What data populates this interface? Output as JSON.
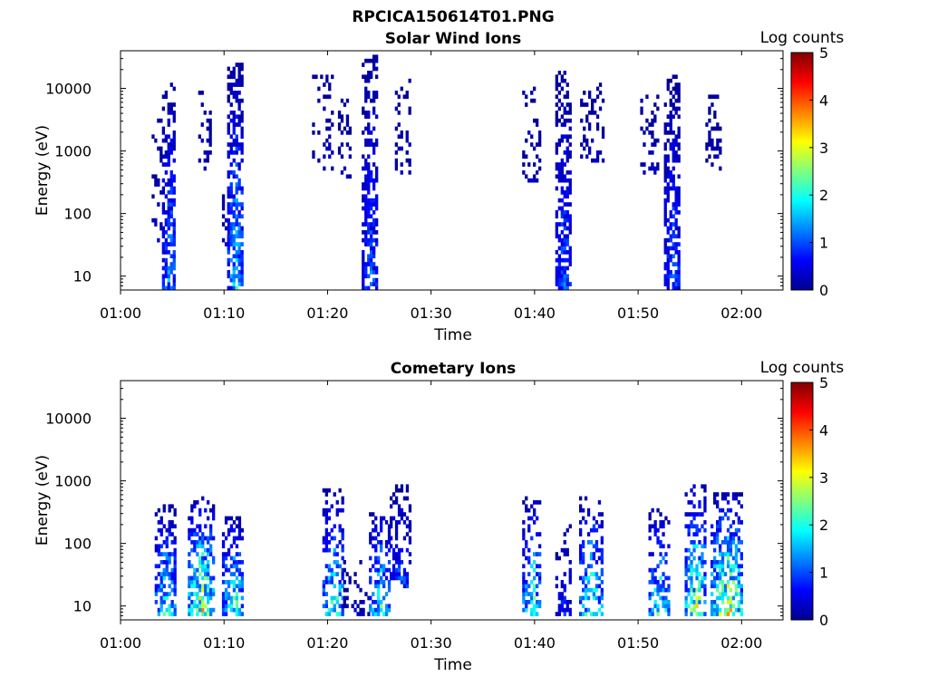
{
  "figure_title": "RPCICA150614T01.PNG",
  "chart_data": [
    {
      "type": "heatmap",
      "title": "Solar Wind Ions",
      "xlabel": "Time",
      "ylabel": "Energy (eV)",
      "y_scale": "log",
      "ylim": [
        6,
        40000
      ],
      "xlim_minutes": [
        60,
        124
      ],
      "x_ticks": [
        {
          "minute": 60,
          "label": "01:00"
        },
        {
          "minute": 70,
          "label": "01:10"
        },
        {
          "minute": 80,
          "label": "01:20"
        },
        {
          "minute": 90,
          "label": "01:30"
        },
        {
          "minute": 100,
          "label": "01:40"
        },
        {
          "minute": 110,
          "label": "01:50"
        },
        {
          "minute": 120,
          "label": "02:00"
        }
      ],
      "y_ticks": [
        {
          "value": 10,
          "label": "10"
        },
        {
          "value": 100,
          "label": "100"
        },
        {
          "value": 1000,
          "label": "1000"
        },
        {
          "value": 10000,
          "label": "10000"
        }
      ],
      "colorbar": {
        "label": "Log counts",
        "min": 0,
        "max": 5,
        "ticks": [
          "0",
          "1",
          "2",
          "3",
          "4",
          "5"
        ],
        "colormap": "jet"
      },
      "bursts": [
        {
          "t0": 63.0,
          "t1": 63.8,
          "elow": 30,
          "ehigh": 5000,
          "peak": 0.4,
          "density": 0.25
        },
        {
          "t0": 64.0,
          "t1": 65.3,
          "elow": 6,
          "ehigh": 12000,
          "peak": 1.3,
          "density": 0.7
        },
        {
          "t0": 67.5,
          "t1": 68.8,
          "elow": 500,
          "ehigh": 10000,
          "peak": 0.3,
          "density": 0.35
        },
        {
          "t0": 69.8,
          "t1": 70.4,
          "elow": 30,
          "ehigh": 200,
          "peak": 0.4,
          "density": 0.3
        },
        {
          "t0": 70.3,
          "t1": 71.8,
          "elow": 6,
          "ehigh": 25000,
          "peak": 1.6,
          "density": 0.75
        },
        {
          "t0": 78.5,
          "t1": 80.5,
          "elow": 500,
          "ehigh": 15000,
          "peak": 0.3,
          "density": 0.3
        },
        {
          "t0": 81.0,
          "t1": 82.3,
          "elow": 300,
          "ehigh": 6000,
          "peak": 0.3,
          "density": 0.3
        },
        {
          "t0": 83.3,
          "t1": 84.8,
          "elow": 6,
          "ehigh": 30000,
          "peak": 1.0,
          "density": 0.7
        },
        {
          "t0": 86.5,
          "t1": 88.0,
          "elow": 400,
          "ehigh": 15000,
          "peak": 0.3,
          "density": 0.35
        },
        {
          "t0": 98.8,
          "t1": 100.5,
          "elow": 300,
          "ehigh": 10000,
          "peak": 0.3,
          "density": 0.35
        },
        {
          "t0": 102.0,
          "t1": 103.5,
          "elow": 6,
          "ehigh": 18000,
          "peak": 1.0,
          "density": 0.7
        },
        {
          "t0": 104.4,
          "t1": 106.5,
          "elow": 600,
          "ehigh": 12000,
          "peak": 0.3,
          "density": 0.35
        },
        {
          "t0": 110.2,
          "t1": 112.0,
          "elow": 400,
          "ehigh": 10000,
          "peak": 0.3,
          "density": 0.3
        },
        {
          "t0": 112.5,
          "t1": 114.0,
          "elow": 6,
          "ehigh": 15000,
          "peak": 1.0,
          "density": 0.7
        },
        {
          "t0": 116.5,
          "t1": 118.0,
          "elow": 500,
          "ehigh": 8000,
          "peak": 0.3,
          "density": 0.35
        }
      ]
    },
    {
      "type": "heatmap",
      "title": "Cometary Ions",
      "xlabel": "Time",
      "ylabel": "Energy (eV)",
      "y_scale": "log",
      "ylim": [
        6,
        40000
      ],
      "xlim_minutes": [
        60,
        124
      ],
      "x_ticks": [
        {
          "minute": 60,
          "label": "01:00"
        },
        {
          "minute": 70,
          "label": "01:10"
        },
        {
          "minute": 80,
          "label": "01:20"
        },
        {
          "minute": 90,
          "label": "01:30"
        },
        {
          "minute": 100,
          "label": "01:40"
        },
        {
          "minute": 110,
          "label": "01:50"
        },
        {
          "minute": 120,
          "label": "02:00"
        }
      ],
      "y_ticks": [
        {
          "value": 10,
          "label": "10"
        },
        {
          "value": 100,
          "label": "100"
        },
        {
          "value": 1000,
          "label": "1000"
        },
        {
          "value": 10000,
          "label": "10000"
        }
      ],
      "colorbar": {
        "label": "Log counts",
        "min": 0,
        "max": 5,
        "ticks": [
          "0",
          "1",
          "2",
          "3",
          "4",
          "5"
        ],
        "colormap": "jet"
      },
      "bursts": [
        {
          "t0": 63.3,
          "t1": 65.2,
          "elow": 7,
          "ehigh": 400,
          "peak": 2.0,
          "density": 0.65
        },
        {
          "t0": 66.5,
          "t1": 69.0,
          "elow": 7,
          "ehigh": 500,
          "peak": 2.8,
          "density": 0.7
        },
        {
          "t0": 69.8,
          "t1": 71.8,
          "elow": 7,
          "ehigh": 250,
          "peak": 2.2,
          "density": 0.6
        },
        {
          "t0": 79.5,
          "t1": 81.5,
          "elow": 7,
          "ehigh": 700,
          "peak": 2.0,
          "density": 0.55
        },
        {
          "t0": 81.5,
          "t1": 84.0,
          "elow": 7,
          "ehigh": 60,
          "peak": 0.3,
          "density": 0.2
        },
        {
          "t0": 84.0,
          "t1": 86.0,
          "elow": 7,
          "ehigh": 300,
          "peak": 2.0,
          "density": 0.55
        },
        {
          "t0": 86.0,
          "t1": 88.0,
          "elow": 20,
          "ehigh": 800,
          "peak": 1.0,
          "density": 0.45
        },
        {
          "t0": 98.8,
          "t1": 100.6,
          "elow": 7,
          "ehigh": 500,
          "peak": 2.2,
          "density": 0.55
        },
        {
          "t0": 102.0,
          "t1": 103.5,
          "elow": 7,
          "ehigh": 200,
          "peak": 0.8,
          "density": 0.4
        },
        {
          "t0": 104.3,
          "t1": 106.5,
          "elow": 7,
          "ehigh": 500,
          "peak": 2.2,
          "density": 0.6
        },
        {
          "t0": 111.0,
          "t1": 113.0,
          "elow": 7,
          "ehigh": 350,
          "peak": 2.0,
          "density": 0.55
        },
        {
          "t0": 114.5,
          "t1": 116.5,
          "elow": 7,
          "ehigh": 800,
          "peak": 2.6,
          "density": 0.6
        },
        {
          "t0": 117.0,
          "t1": 120.0,
          "elow": 7,
          "ehigh": 600,
          "peak": 3.0,
          "density": 0.65
        }
      ]
    }
  ]
}
